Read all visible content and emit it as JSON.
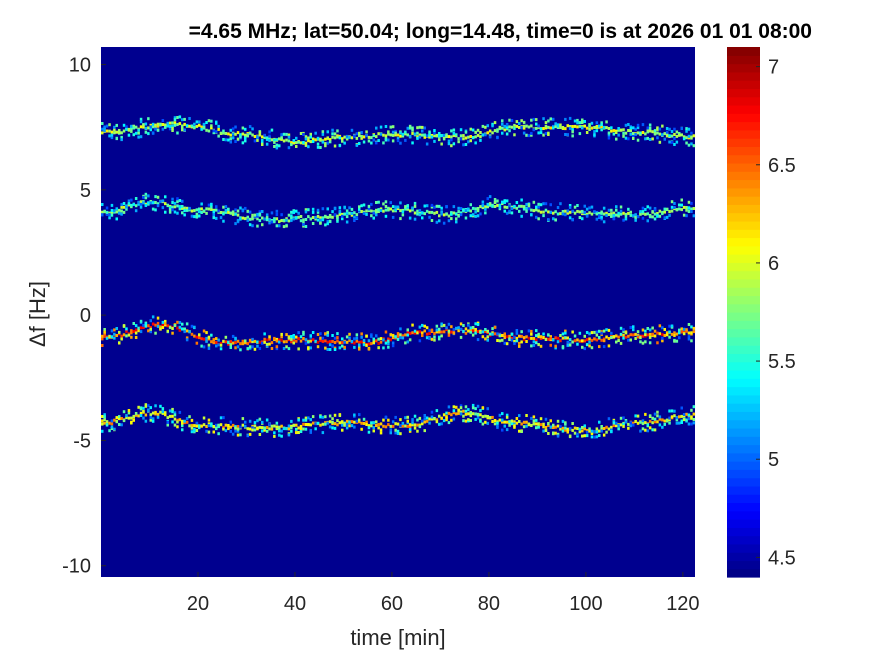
{
  "chart_data": {
    "type": "heatmap",
    "title": "=4.65 MHz;  lat=50.04; long=14.48, time=0 is at 2026 01 01 08:00",
    "xlabel": "time [min]",
    "ylabel": "Δf [Hz]",
    "xlim": [
      0,
      122.5
    ],
    "ylim": [
      -10.45,
      10.7
    ],
    "xticks": [
      20,
      40,
      60,
      80,
      100,
      120
    ],
    "xtick_labels": [
      "20",
      "40",
      "60",
      "80",
      "100",
      "120"
    ],
    "yticks": [
      10,
      5,
      0,
      -5,
      -10
    ],
    "ytick_labels": [
      "10",
      "5",
      "0",
      "-5",
      "-10"
    ],
    "colormap": "jet",
    "clim": [
      4.4,
      7.1
    ],
    "colorbar_ticks": [
      7,
      6.5,
      6,
      5.5,
      5,
      4.5
    ],
    "colorbar_tick_labels": [
      "7",
      "6.5",
      "6",
      "5.5",
      "5",
      "4.5"
    ],
    "background_value": 4.4,
    "ridges": [
      {
        "time": [
          0,
          15,
          30,
          40,
          50,
          60,
          75,
          85,
          100,
          110,
          122.5
        ],
        "freq": [
          7.3,
          7.6,
          7.2,
          6.9,
          7.1,
          7.2,
          7.1,
          7.5,
          7.5,
          7.3,
          7.1
        ],
        "peak": 6.2
      },
      {
        "time": [
          0,
          10,
          20,
          35,
          45,
          60,
          72,
          80,
          95,
          110,
          122.5
        ],
        "freq": [
          4.1,
          4.5,
          4.2,
          3.8,
          3.9,
          4.2,
          4.0,
          4.4,
          4.1,
          4.0,
          4.3
        ],
        "peak": 6.0
      },
      {
        "time": [
          0,
          12,
          25,
          40,
          55,
          65,
          75,
          85,
          100,
          110,
          122.5
        ],
        "freq": [
          -0.9,
          -0.4,
          -1.1,
          -1.0,
          -1.1,
          -0.7,
          -0.6,
          -0.9,
          -1.0,
          -0.8,
          -0.7
        ],
        "peak": 6.9
      },
      {
        "time": [
          0,
          10,
          20,
          35,
          50,
          62,
          75,
          85,
          100,
          110,
          122.5
        ],
        "freq": [
          -4.3,
          -3.9,
          -4.4,
          -4.5,
          -4.3,
          -4.4,
          -3.9,
          -4.3,
          -4.6,
          -4.3,
          -4.0
        ],
        "peak": 6.5
      }
    ]
  }
}
